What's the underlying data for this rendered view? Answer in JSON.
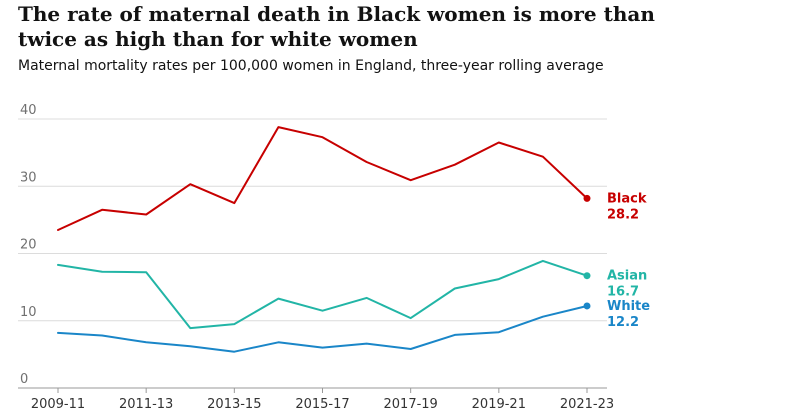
{
  "header": {
    "title": "The rate of maternal death in Black women is more than twice as high than for white women",
    "subtitle": "Maternal mortality rates per 100,000 women in England, three-year rolling average"
  },
  "chart_data": {
    "type": "line",
    "title": "The rate of maternal death in Black women is more than twice as high than for white women",
    "subtitle": "Maternal mortality rates per 100,000 women in England, three-year rolling average",
    "xlabel": "",
    "ylabel": "",
    "ylim": [
      0,
      40
    ],
    "yticks": [
      0,
      10,
      20,
      30,
      40
    ],
    "grid": "horizontal",
    "legend": "inline-right",
    "x": [
      "2009-11",
      "2010-12",
      "2011-13",
      "2012-14",
      "2013-15",
      "2014-16",
      "2015-17",
      "2016-18",
      "2017-19",
      "2018-20",
      "2019-21",
      "2020-22",
      "2021-23"
    ],
    "xtick_labels": [
      "2009-11",
      "2011-13",
      "2013-15",
      "2015-17",
      "2017-19",
      "2019-21",
      "2021-23"
    ],
    "series": [
      {
        "name": "Black",
        "value_label": "28.2",
        "color": "#c70000",
        "values": [
          23.5,
          26.5,
          25.8,
          30.3,
          27.5,
          38.8,
          37.3,
          33.6,
          30.9,
          33.2,
          36.5,
          34.4,
          28.2
        ]
      },
      {
        "name": "Asian",
        "value_label": "16.7",
        "color": "#22b5a6",
        "values": [
          18.3,
          17.3,
          17.2,
          8.9,
          9.5,
          13.3,
          11.5,
          13.4,
          10.4,
          14.8,
          16.2,
          18.9,
          16.7
        ]
      },
      {
        "name": "White",
        "value_label": "12.2",
        "color": "#1a86c8",
        "values": [
          8.2,
          7.8,
          6.8,
          6.2,
          5.4,
          6.8,
          6.0,
          6.6,
          5.8,
          7.9,
          8.3,
          10.6,
          12.2
        ]
      }
    ]
  }
}
